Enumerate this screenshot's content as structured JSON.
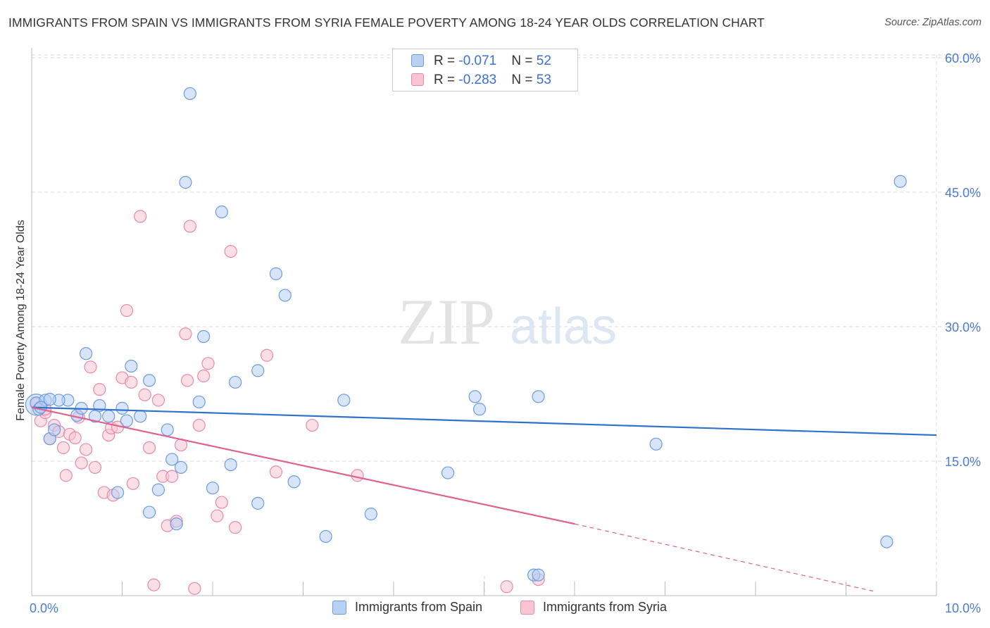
{
  "title": "IMMIGRANTS FROM SPAIN VS IMMIGRANTS FROM SYRIA FEMALE POVERTY AMONG 18-24 YEAR OLDS CORRELATION CHART",
  "source": "Source: ZipAtlas.com",
  "watermark": {
    "zip": "ZIP",
    "atlas": "atlas"
  },
  "legend": {
    "spain": {
      "r_label": "R = ",
      "r_value": "-0.071",
      "n_label": "N = ",
      "n_value": "52"
    },
    "syria": {
      "r_label": "R = ",
      "r_value": "-0.283",
      "n_label": "N = ",
      "n_value": "53"
    }
  },
  "colors": {
    "spain_fill": "#b8d0f2",
    "spain_stroke": "#6c9be0",
    "spain_line": "#2f72cc",
    "syria_fill": "#f8c4d4",
    "syria_stroke": "#e88aa8",
    "syria_line": "#e0628e",
    "grid": "#d9d9d9",
    "axis_text": "#4a7bd0"
  },
  "chart_data": {
    "type": "scatter",
    "title": "IMMIGRANTS FROM SPAIN VS IMMIGRANTS FROM SYRIA FEMALE POVERTY AMONG 18-24 YEAR OLDS CORRELATION CHART",
    "xlabel": "",
    "ylabel": "Female Poverty Among 18-24 Year Olds",
    "xlim": [
      0,
      10
    ],
    "ylim": [
      0,
      60
    ],
    "x_tick_labels": [
      "0.0%",
      "10.0%"
    ],
    "y_ticks": [
      15,
      30,
      45,
      60
    ],
    "y_tick_labels": [
      "15.0%",
      "30.0%",
      "45.0%",
      "60.0%"
    ],
    "legend_position": "top-center",
    "series": [
      {
        "name": "Immigrants from Spain",
        "points": [
          [
            0.05,
            21.5
          ],
          [
            0.08,
            20.8
          ],
          [
            0.15,
            21.8
          ],
          [
            0.2,
            17.5
          ],
          [
            0.25,
            18.5
          ],
          [
            0.4,
            21.8
          ],
          [
            0.3,
            21.8
          ],
          [
            0.5,
            20.1
          ],
          [
            0.55,
            20.9
          ],
          [
            0.6,
            27.0
          ],
          [
            0.7,
            20.0
          ],
          [
            0.75,
            21.2
          ],
          [
            0.85,
            20.0
          ],
          [
            0.95,
            11.5
          ],
          [
            1.0,
            20.9
          ],
          [
            1.05,
            19.5
          ],
          [
            1.1,
            25.6
          ],
          [
            1.2,
            20.0
          ],
          [
            1.3,
            9.3
          ],
          [
            1.3,
            24.0
          ],
          [
            1.4,
            11.8
          ],
          [
            1.5,
            18.5
          ],
          [
            1.55,
            15.2
          ],
          [
            1.6,
            8.0
          ],
          [
            1.65,
            14.3
          ],
          [
            1.7,
            46.1
          ],
          [
            1.75,
            56.0
          ],
          [
            1.85,
            21.6
          ],
          [
            1.9,
            28.9
          ],
          [
            2.0,
            12.0
          ],
          [
            2.1,
            42.8
          ],
          [
            2.2,
            14.6
          ],
          [
            2.25,
            23.8
          ],
          [
            2.5,
            10.3
          ],
          [
            2.5,
            25.1
          ],
          [
            2.7,
            35.9
          ],
          [
            2.8,
            33.5
          ],
          [
            2.9,
            12.7
          ],
          [
            3.25,
            6.6
          ],
          [
            3.45,
            21.8
          ],
          [
            3.75,
            9.1
          ],
          [
            4.6,
            13.7
          ],
          [
            4.9,
            22.2
          ],
          [
            4.95,
            20.8
          ],
          [
            5.55,
            2.3
          ],
          [
            5.6,
            2.3
          ],
          [
            5.6,
            22.2
          ],
          [
            6.9,
            16.9
          ],
          [
            9.45,
            6.0
          ],
          [
            9.6,
            46.2
          ],
          [
            0.1,
            21.0
          ],
          [
            0.2,
            21.9
          ]
        ]
      },
      {
        "name": "Immigrants from Syria",
        "points": [
          [
            0.05,
            21.4
          ],
          [
            0.1,
            19.5
          ],
          [
            0.15,
            20.4
          ],
          [
            0.2,
            17.5
          ],
          [
            0.25,
            19.0
          ],
          [
            0.3,
            18.3
          ],
          [
            0.35,
            16.5
          ],
          [
            0.38,
            13.4
          ],
          [
            0.42,
            18.0
          ],
          [
            0.48,
            17.6
          ],
          [
            0.52,
            19.9
          ],
          [
            0.55,
            14.8
          ],
          [
            0.6,
            16.3
          ],
          [
            0.65,
            25.5
          ],
          [
            0.7,
            14.3
          ],
          [
            0.75,
            23.0
          ],
          [
            0.8,
            11.5
          ],
          [
            0.85,
            17.9
          ],
          [
            0.88,
            18.7
          ],
          [
            0.9,
            11.2
          ],
          [
            0.95,
            18.8
          ],
          [
            1.0,
            24.3
          ],
          [
            1.05,
            31.8
          ],
          [
            1.1,
            23.8
          ],
          [
            1.12,
            12.5
          ],
          [
            1.2,
            42.3
          ],
          [
            1.25,
            22.4
          ],
          [
            1.3,
            16.5
          ],
          [
            1.35,
            1.2
          ],
          [
            1.4,
            21.8
          ],
          [
            1.45,
            13.3
          ],
          [
            1.5,
            7.8
          ],
          [
            1.55,
            13.3
          ],
          [
            1.6,
            8.3
          ],
          [
            1.65,
            16.8
          ],
          [
            1.7,
            29.2
          ],
          [
            1.72,
            24.0
          ],
          [
            1.75,
            41.2
          ],
          [
            1.8,
            0.8
          ],
          [
            1.85,
            19.0
          ],
          [
            1.9,
            24.5
          ],
          [
            1.95,
            25.9
          ],
          [
            2.05,
            8.9
          ],
          [
            2.1,
            10.4
          ],
          [
            2.2,
            38.4
          ],
          [
            2.25,
            7.6
          ],
          [
            2.6,
            26.8
          ],
          [
            2.7,
            13.8
          ],
          [
            3.1,
            19.0
          ],
          [
            3.6,
            13.4
          ],
          [
            5.25,
            1.0
          ],
          [
            5.6,
            1.8
          ],
          [
            0.15,
            20.8
          ]
        ]
      }
    ],
    "trend_lines": [
      {
        "series": "Immigrants from Spain",
        "x": [
          0,
          10
        ],
        "y": [
          21.0,
          17.9
        ]
      },
      {
        "series": "Immigrants from Syria",
        "x": [
          0,
          6.0
        ],
        "y": [
          21.0,
          8.0
        ],
        "dashed_extension": {
          "x": [
            6.0,
            9.3
          ],
          "y": [
            8.0,
            0.5
          ]
        }
      }
    ],
    "bottom_legend": [
      "Immigrants from Spain",
      "Immigrants from Syria"
    ]
  }
}
